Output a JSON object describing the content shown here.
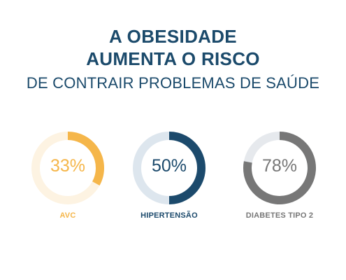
{
  "title": {
    "line1": "A OBESIDADE",
    "line2": "AUMENTA O RISCO",
    "line3": "DE CONTRAIR PROBLEMAS DE SAÚDE"
  },
  "colors": {
    "title": "#1b4a6b",
    "avc": "#f5b64a",
    "avc_track": "#fdf3e2",
    "hipertensao": "#1c4a6c",
    "hipertensao_track": "#dde6ee",
    "diabetes": "#777777",
    "diabetes_track": "#e6e9ed"
  },
  "chart_data": {
    "type": "pie",
    "style": "donut",
    "categories": [
      "AVC",
      "HIPERTENSÃO",
      "DIABETES TIPO 2"
    ],
    "values": [
      33,
      50,
      78
    ],
    "value_labels": [
      "33%",
      "50%",
      "78%"
    ],
    "unit": "%"
  }
}
